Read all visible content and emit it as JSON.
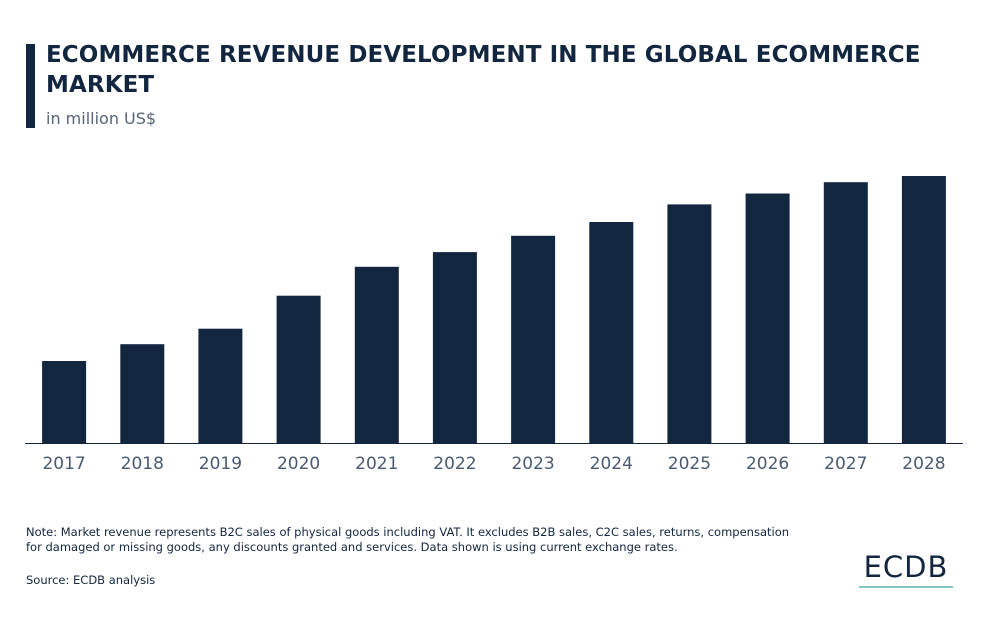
{
  "header": {
    "title": "ECOMMERCE REVENUE DEVELOPMENT IN THE GLOBAL ECOMMERCE MARKET",
    "subtitle": "in million US$"
  },
  "footer": {
    "note": "Note: Market revenue represents B2C sales of physical goods including VAT. It excludes B2B sales, C2C sales, returns, compensation for damaged or missing goods, any discounts granted and services. Data shown is using current exchange rates.",
    "source": "Source: ECDB analysis",
    "logo": "ECDB"
  },
  "colors": {
    "bar": "#13263f",
    "title": "#13263f",
    "axis_text": "#4a5a70",
    "baseline": "#13263f",
    "logo_underline": "#7fc6bd"
  },
  "chart_data": {
    "type": "bar",
    "title": "ECOMMERCE REVENUE DEVELOPMENT IN THE GLOBAL ECOMMERCE MARKET",
    "subtitle": "in million US$",
    "categories": [
      "2017",
      "2018",
      "2019",
      "2020",
      "2021",
      "2022",
      "2023",
      "2024",
      "2025",
      "2026",
      "2027",
      "2028"
    ],
    "values": [
      1960,
      2360,
      2730,
      3520,
      4210,
      4560,
      4950,
      5280,
      5700,
      5960,
      6230,
      6380
    ],
    "ylim": [
      0,
      7000
    ],
    "xlabel": "",
    "ylabel": "",
    "grid": false,
    "y_axis_visible": false,
    "data_labels": false
  }
}
